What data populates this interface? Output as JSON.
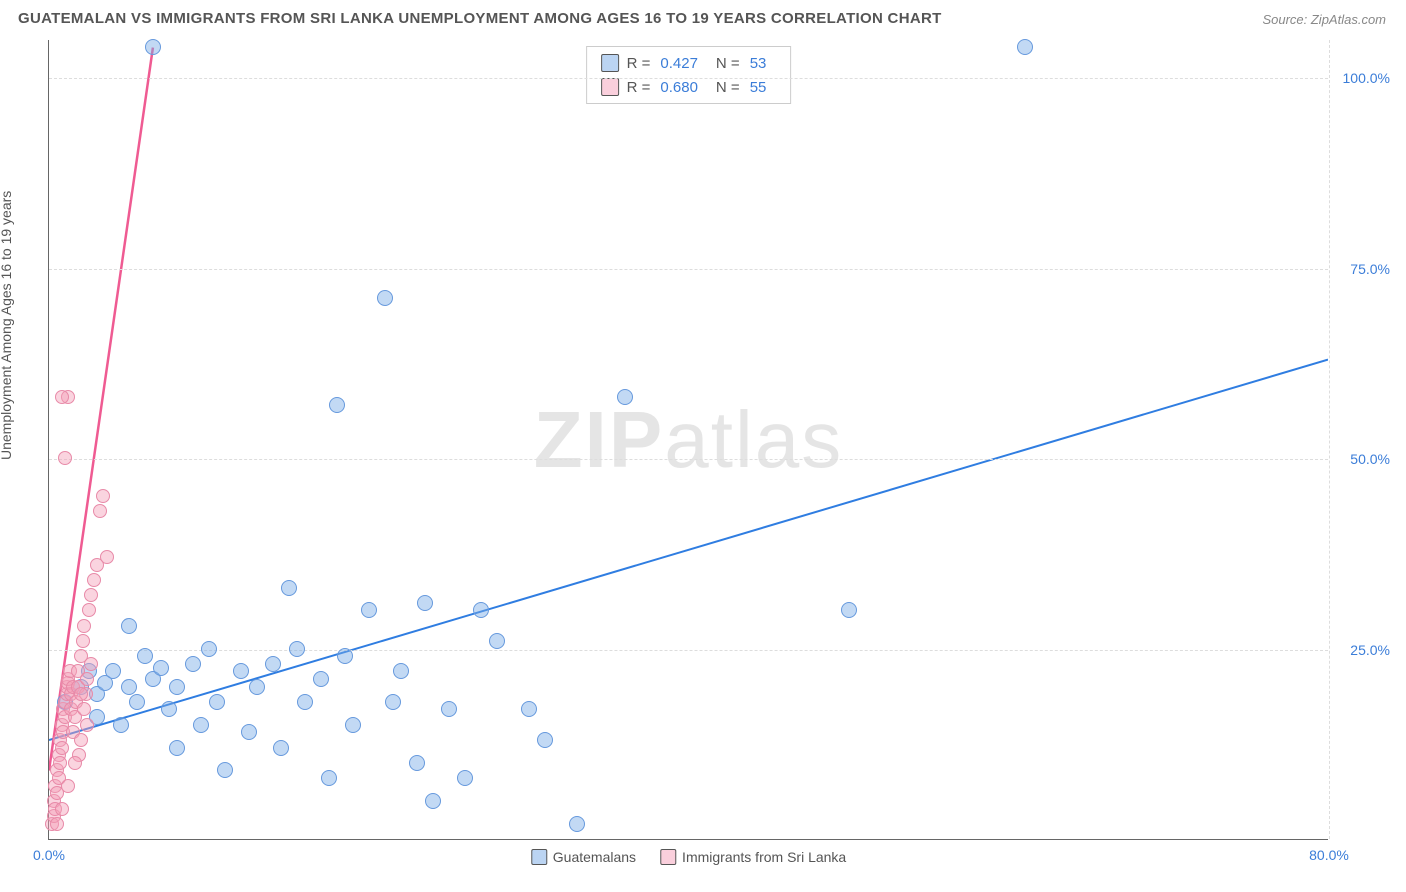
{
  "title": "GUATEMALAN VS IMMIGRANTS FROM SRI LANKA UNEMPLOYMENT AMONG AGES 16 TO 19 YEARS CORRELATION CHART",
  "source": "Source: ZipAtlas.com",
  "y_axis_label": "Unemployment Among Ages 16 to 19 years",
  "watermark_bold": "ZIP",
  "watermark_light": "atlas",
  "chart": {
    "type": "scatter",
    "xlim": [
      0,
      80
    ],
    "ylim": [
      0,
      105
    ],
    "x_ticks": [
      {
        "v": 0,
        "label": "0.0%"
      },
      {
        "v": 80,
        "label": "80.0%"
      }
    ],
    "y_ticks": [
      {
        "v": 25,
        "label": "25.0%"
      },
      {
        "v": 50,
        "label": "50.0%"
      },
      {
        "v": 75,
        "label": "75.0%"
      },
      {
        "v": 100,
        "label": "100.0%"
      }
    ],
    "grid_color": "#dddddd",
    "background_color": "#ffffff",
    "axis_color": "#666666",
    "tick_label_color": "#3b7dd8",
    "marker_size": 16,
    "series": [
      {
        "name": "Guatemalans",
        "color_fill": "rgba(120,170,230,0.45)",
        "color_border": "#6699dd",
        "trend_color": "#2f7de1",
        "trend_width": 2,
        "R": "0.427",
        "N": "53",
        "trend": {
          "x1": 0,
          "y1": 13,
          "x2": 80,
          "y2": 63
        },
        "points": [
          [
            1,
            18
          ],
          [
            2,
            20
          ],
          [
            2.5,
            22
          ],
          [
            3,
            16
          ],
          [
            3,
            19
          ],
          [
            3.5,
            20.5
          ],
          [
            4,
            22
          ],
          [
            4.5,
            15
          ],
          [
            5,
            28
          ],
          [
            5,
            20
          ],
          [
            5.5,
            18
          ],
          [
            6,
            24
          ],
          [
            6.5,
            21
          ],
          [
            7,
            22.5
          ],
          [
            7.5,
            17
          ],
          [
            8,
            12
          ],
          [
            8,
            20
          ],
          [
            9,
            23
          ],
          [
            9.5,
            15
          ],
          [
            10,
            25
          ],
          [
            10.5,
            18
          ],
          [
            11,
            9
          ],
          [
            12,
            22
          ],
          [
            12.5,
            14
          ],
          [
            13,
            20
          ],
          [
            14,
            23
          ],
          [
            14.5,
            12
          ],
          [
            15,
            33
          ],
          [
            15.5,
            25
          ],
          [
            16,
            18
          ],
          [
            17,
            21
          ],
          [
            17.5,
            8
          ],
          [
            18,
            57
          ],
          [
            18.5,
            24
          ],
          [
            19,
            15
          ],
          [
            20,
            30
          ],
          [
            21,
            71
          ],
          [
            21.5,
            18
          ],
          [
            22,
            22
          ],
          [
            23,
            10
          ],
          [
            23.5,
            31
          ],
          [
            24,
            5
          ],
          [
            25,
            17
          ],
          [
            26,
            8
          ],
          [
            27,
            30
          ],
          [
            28,
            26
          ],
          [
            30,
            17
          ],
          [
            31,
            13
          ],
          [
            33,
            2
          ],
          [
            36,
            58
          ],
          [
            50,
            30
          ],
          [
            61,
            104
          ],
          [
            6.5,
            104
          ]
        ]
      },
      {
        "name": "Immigrants from Sri Lanka",
        "color_fill": "rgba(245,160,185,0.45)",
        "color_border": "#e88aa8",
        "trend_color": "#ef5b92",
        "trend_width": 2.5,
        "R": "0.680",
        "N": "55",
        "trend": {
          "x1": 0,
          "y1": 9,
          "x2": 6.5,
          "y2": 104
        },
        "points": [
          [
            0.2,
            2
          ],
          [
            0.3,
            3
          ],
          [
            0.3,
            5
          ],
          [
            0.4,
            4
          ],
          [
            0.4,
            7
          ],
          [
            0.5,
            6
          ],
          [
            0.5,
            9
          ],
          [
            0.6,
            8
          ],
          [
            0.6,
            11
          ],
          [
            0.7,
            10
          ],
          [
            0.7,
            13
          ],
          [
            0.8,
            12
          ],
          [
            0.8,
            15
          ],
          [
            0.9,
            14
          ],
          [
            0.9,
            17
          ],
          [
            1.0,
            16
          ],
          [
            1.0,
            18
          ],
          [
            1.1,
            19
          ],
          [
            1.1,
            20
          ],
          [
            1.2,
            20.5
          ],
          [
            1.2,
            21
          ],
          [
            1.3,
            22
          ],
          [
            1.4,
            17
          ],
          [
            1.4,
            19
          ],
          [
            1.5,
            20
          ],
          [
            1.5,
            14
          ],
          [
            1.6,
            16
          ],
          [
            1.7,
            18
          ],
          [
            1.8,
            20
          ],
          [
            1.8,
            22
          ],
          [
            1.9,
            11
          ],
          [
            2.0,
            13
          ],
          [
            2.0,
            24
          ],
          [
            2.1,
            26
          ],
          [
            2.2,
            28
          ],
          [
            2.3,
            19
          ],
          [
            2.4,
            21
          ],
          [
            2.5,
            30
          ],
          [
            2.6,
            32
          ],
          [
            2.6,
            23
          ],
          [
            2.8,
            34
          ],
          [
            3.0,
            36
          ],
          [
            0.5,
            2
          ],
          [
            0.8,
            4
          ],
          [
            1.2,
            7
          ],
          [
            3.2,
            43
          ],
          [
            3.4,
            45
          ],
          [
            3.6,
            37
          ],
          [
            1.0,
            50
          ],
          [
            1.2,
            58
          ],
          [
            0.8,
            58
          ],
          [
            2.0,
            19
          ],
          [
            2.2,
            17
          ],
          [
            2.4,
            15
          ],
          [
            1.6,
            10
          ]
        ]
      }
    ],
    "legend_top": {
      "rows": [
        {
          "swatch": "blue",
          "r_label": "R =",
          "r_val": "0.427",
          "n_label": "N =",
          "n_val": "53"
        },
        {
          "swatch": "pink",
          "r_label": "R =",
          "r_val": "0.680",
          "n_label": "N =",
          "n_val": "55"
        }
      ]
    },
    "legend_bottom": [
      {
        "swatch": "blue",
        "label": "Guatemalans"
      },
      {
        "swatch": "pink",
        "label": "Immigrants from Sri Lanka"
      }
    ]
  }
}
